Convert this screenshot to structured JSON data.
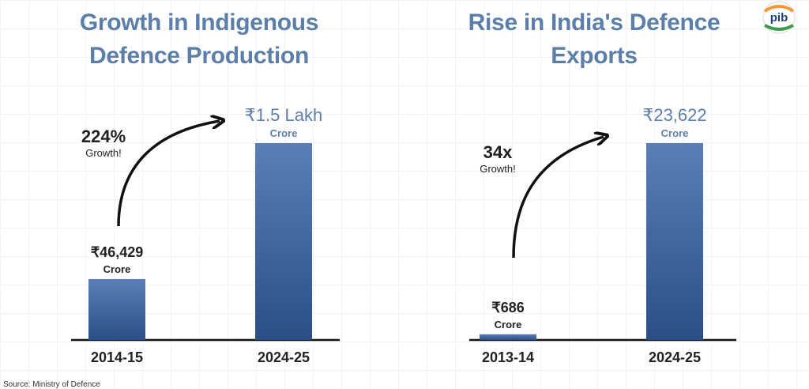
{
  "charts": [
    {
      "title_line1": "Growth in Indigenous",
      "title_line2": "Defence Production",
      "growth_value": "224%",
      "growth_label": "Growth!",
      "unit_label": "Crore"
    },
    {
      "title_line1": "Rise in India's Defence",
      "title_line2": "Exports",
      "growth_value": "34x",
      "growth_label": "Growth!",
      "unit_label": "Crore"
    }
  ],
  "source": "Source: Ministry of Defence",
  "logo_text": "pib",
  "colors": {
    "title": "#5b7fa9",
    "bar_top": "#5a7fb8",
    "bar_bottom": "#2a4f86",
    "axis": "#111111",
    "text": "#222222"
  },
  "chart_data": [
    {
      "type": "bar",
      "title": "Growth in Indigenous Defence Production",
      "categories": [
        "2014-15",
        "2024-25"
      ],
      "values": [
        46429,
        150000
      ],
      "value_labels": [
        "₹46,429",
        "₹1.5 Lakh"
      ],
      "unit": "Crore",
      "annotation": "224% Growth!",
      "ylim": [
        0,
        150000
      ],
      "grid": false
    },
    {
      "type": "bar",
      "title": "Rise in India's Defence Exports",
      "categories": [
        "2013-14",
        "2024-25"
      ],
      "values": [
        686,
        23622
      ],
      "value_labels": [
        "₹686",
        "₹23,622"
      ],
      "unit": "Crore",
      "annotation": "34x Growth!",
      "ylim": [
        0,
        23622
      ],
      "grid": false
    }
  ]
}
